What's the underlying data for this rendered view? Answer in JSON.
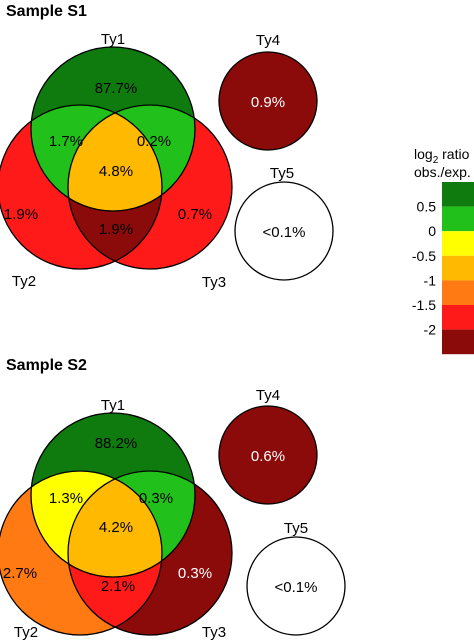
{
  "colors": {
    "dark_green": "#0f7b0f",
    "bright_green": "#22c01a",
    "yellow": "#ffff00",
    "gold": "#ffba00",
    "orange": "#ff7a12",
    "red": "#ff1a1a",
    "dark_red": "#8b0a0a",
    "white": "#ffffff"
  },
  "legend": {
    "title_line1_base": "log",
    "title_line1_sub": "2",
    "title_line1_rest": " ratio",
    "title_line2": "obs./exp.",
    "swatches": [
      "#0f7b0f",
      "#22c01a",
      "#ffff00",
      "#ffba00",
      "#ff7a12",
      "#ff1a1a",
      "#8b0a0a"
    ],
    "ticks": [
      "0.5",
      "0",
      "-0.5",
      "-1",
      "-1.5",
      "-2"
    ]
  },
  "samples": [
    {
      "title": "Sample S1",
      "sets": {
        "ty1": "Ty1",
        "ty2": "Ty2",
        "ty3": "Ty3",
        "ty4": "Ty4",
        "ty5": "Ty5"
      },
      "regions": {
        "ty1_only": {
          "value": "87.7%",
          "color": "#0f7b0f"
        },
        "ty2_only": {
          "value": "1.9%",
          "color": "#ff1a1a"
        },
        "ty3_only": {
          "value": "0.7%",
          "color": "#ff1a1a"
        },
        "ty1_ty2": {
          "value": "1.7%",
          "color": "#22c01a"
        },
        "ty1_ty3": {
          "value": "0.2%",
          "color": "#22c01a"
        },
        "ty2_ty3": {
          "value": "1.9%",
          "color": "#8b0a0a"
        },
        "ty1_ty2_ty3": {
          "value": "4.8%",
          "color": "#ffba00"
        },
        "ty4": {
          "value": "0.9%",
          "color": "#8b0a0a"
        },
        "ty5": {
          "value": "<0.1%",
          "color": "#ffffff"
        }
      }
    },
    {
      "title": "Sample S2",
      "sets": {
        "ty1": "Ty1",
        "ty2": "Ty2",
        "ty3": "Ty3",
        "ty4": "Ty4",
        "ty5": "Ty5"
      },
      "regions": {
        "ty1_only": {
          "value": "88.2%",
          "color": "#0f7b0f"
        },
        "ty2_only": {
          "value": "2.7%",
          "color": "#ff7a12"
        },
        "ty3_only": {
          "value": "0.3%",
          "color": "#8b0a0a"
        },
        "ty1_ty2": {
          "value": "1.3%",
          "color": "#ffff00"
        },
        "ty1_ty3": {
          "value": "0.3%",
          "color": "#22c01a"
        },
        "ty2_ty3": {
          "value": "2.1%",
          "color": "#ff1a1a"
        },
        "ty1_ty2_ty3": {
          "value": "4.2%",
          "color": "#ffba00"
        },
        "ty4": {
          "value": "0.6%",
          "color": "#8b0a0a"
        },
        "ty5": {
          "value": "<0.1%",
          "color": "#ffffff"
        }
      }
    }
  ]
}
